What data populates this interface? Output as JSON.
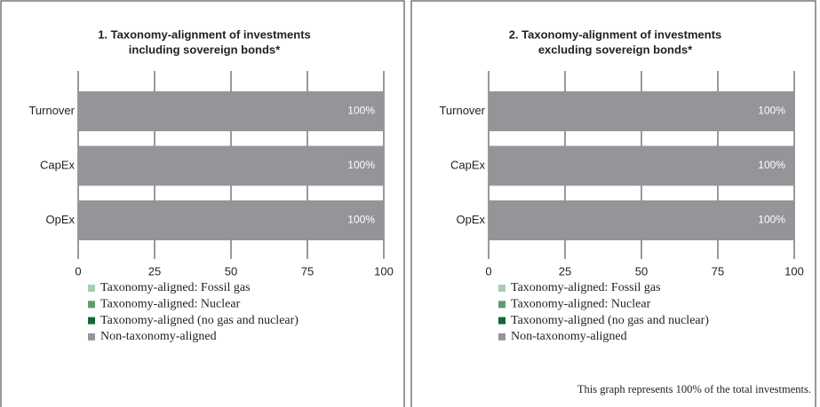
{
  "chart_data": [
    {
      "type": "bar",
      "orientation": "horizontal",
      "stacked": true,
      "title": [
        "1. Taxonomy-alignment of investments",
        "including sovereign bonds*"
      ],
      "categories": [
        "Turnover",
        "CapEx",
        "OpEx"
      ],
      "series": [
        {
          "name": "Taxonomy-aligned: Fossil gas",
          "color": "#a8cdb3",
          "values": [
            0,
            0,
            0
          ]
        },
        {
          "name": "Taxonomy-aligned: Nuclear",
          "color": "#5e9c70",
          "values": [
            0,
            0,
            0
          ]
        },
        {
          "name": "Taxonomy-aligned (no gas and nuclear)",
          "color": "#13673a",
          "values": [
            0,
            0,
            0
          ]
        },
        {
          "name": "Non-taxonomy-aligned",
          "color": "#939598",
          "values": [
            100,
            100,
            100
          ],
          "value_labels": [
            "100%",
            "100%",
            "100%"
          ]
        }
      ],
      "xlim": [
        0,
        100
      ],
      "xticks": [
        0,
        25,
        50,
        75,
        100
      ],
      "grid": true
    },
    {
      "type": "bar",
      "orientation": "horizontal",
      "stacked": true,
      "title": [
        "2. Taxonomy-alignment of investments",
        "excluding sovereign bonds*"
      ],
      "categories": [
        "Turnover",
        "CapEx",
        "OpEx"
      ],
      "series": [
        {
          "name": "Taxonomy-aligned: Fossil gas",
          "color": "#a8cdb3",
          "values": [
            0,
            0,
            0
          ]
        },
        {
          "name": "Taxonomy-aligned: Nuclear",
          "color": "#5e9c70",
          "values": [
            0,
            0,
            0
          ]
        },
        {
          "name": "Taxonomy-aligned (no gas and nuclear)",
          "color": "#13673a",
          "values": [
            0,
            0,
            0
          ]
        },
        {
          "name": "Non-taxonomy-aligned",
          "color": "#939598",
          "values": [
            100,
            100,
            100
          ],
          "value_labels": [
            "100%",
            "100%",
            "100%"
          ]
        }
      ],
      "xlim": [
        0,
        100
      ],
      "xticks": [
        0,
        25,
        50,
        75,
        100
      ],
      "grid": true,
      "note": "This graph represents 100% of the total investments."
    }
  ]
}
